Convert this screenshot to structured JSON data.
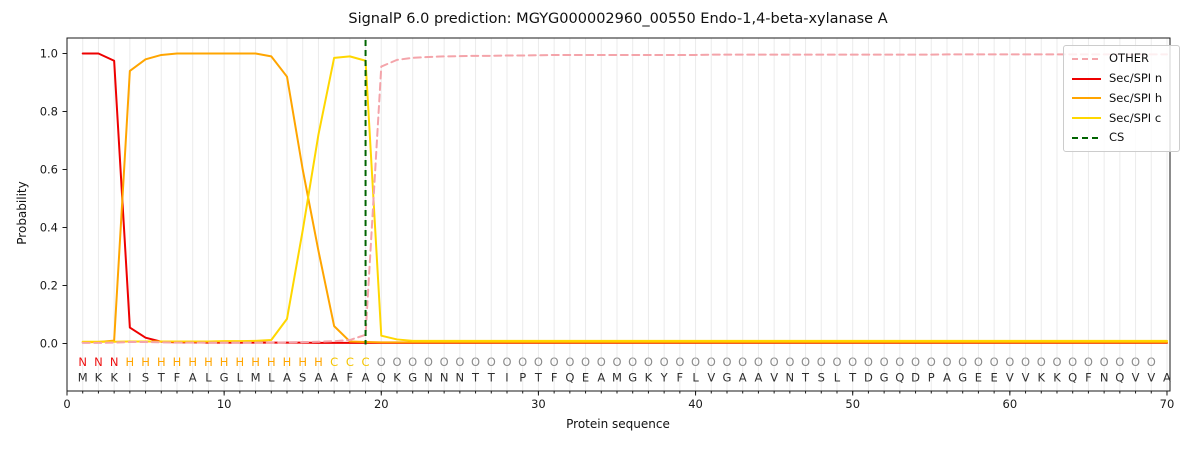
{
  "figure": {
    "title": "SignalP 6.0 prediction: MGYG000002960_00550 Endo-1,4-beta-xylanase A",
    "background": "#ffffff"
  },
  "axes": {
    "x_label": "Protein sequence",
    "y_label": "Probability",
    "x_ticks": [
      0,
      10,
      20,
      30,
      40,
      50,
      60,
      70
    ],
    "y_ticks": [
      "0.0",
      "0.2",
      "0.4",
      "0.6",
      "0.8",
      "1.0"
    ],
    "grid": "light vertical gridline at every residue position",
    "spine_color": "#1a1a1a",
    "grid_color": "#ebebeb"
  },
  "legend": {
    "position": "upper right",
    "items": [
      {
        "label": "OTHER",
        "color": "#f4a4aa",
        "dashed": true
      },
      {
        "label": "Sec/SPI n",
        "color": "#ee0000",
        "dashed": false
      },
      {
        "label": "Sec/SPI h",
        "color": "#ffa500",
        "dashed": false
      },
      {
        "label": "Sec/SPI c",
        "color": "#ffd700",
        "dashed": false
      },
      {
        "label": "CS",
        "color": "#006400",
        "dashed": true
      }
    ]
  },
  "sequence": {
    "residues": "MKKISTFALGLMLASAAFAQKGNNNTTIPTFQEAMGKYFLVGAAVNTSLTDGQDPAGEEVVKKQFNQVVA",
    "region_labels": "NNNHHHHHHHHHHHHHCCCOOOOOOOOOOOOOOOOOOOOOOOOOOOOOOOOOOOOOOOOOOOOOOOOOO",
    "region_colors": {
      "N": "#ee1111",
      "H": "#ffa500",
      "C": "#f5c400",
      "O": "#8c8c8c"
    },
    "residue_color": "#2f2f2f"
  },
  "chart_data": {
    "type": "line",
    "title": "SignalP 6.0 prediction: MGYG000002960_00550 Endo-1,4-beta-xylanase A",
    "xlabel": "Protein sequence",
    "ylabel": "Probability",
    "x_range": [
      1,
      70
    ],
    "xlim": [
      0,
      70.2
    ],
    "ylim": [
      -0.17,
      1.05
    ],
    "legend_position": "upper right",
    "grid": "vertical only",
    "cs_position": 19,
    "series": [
      {
        "name": "Sec/SPI n",
        "color": "#ee0000",
        "dashed": false,
        "values": [
          1.0,
          1.0,
          0.975,
          0.055,
          0.02,
          0.006,
          0.004,
          0.004,
          0.003,
          0.003,
          0.003,
          0.003,
          0.003,
          0.003,
          0.003,
          0.002,
          0.002,
          0.002,
          0.002,
          0.002,
          0.002,
          0.002,
          0.002,
          0.002,
          0.002,
          0.002,
          0.002,
          0.002,
          0.002,
          0.002,
          0.002,
          0.002,
          0.002,
          0.002,
          0.002,
          0.002,
          0.002,
          0.002,
          0.002,
          0.002,
          0.002,
          0.002,
          0.002,
          0.002,
          0.002,
          0.002,
          0.002,
          0.002,
          0.002,
          0.002,
          0.002,
          0.002,
          0.002,
          0.002,
          0.002,
          0.002,
          0.002,
          0.002,
          0.002,
          0.002,
          0.002,
          0.002,
          0.002,
          0.002,
          0.002,
          0.002,
          0.002,
          0.002,
          0.002,
          0.002
        ]
      },
      {
        "name": "Sec/SPI h",
        "color": "#ffa500",
        "dashed": false,
        "values": [
          0.004,
          0.005,
          0.01,
          0.94,
          0.98,
          0.995,
          1.0,
          1.0,
          1.0,
          1.0,
          1.0,
          1.0,
          0.99,
          0.92,
          0.6,
          0.32,
          0.06,
          0.007,
          0.005,
          0.004,
          0.004,
          0.004,
          0.004,
          0.004,
          0.004,
          0.004,
          0.004,
          0.004,
          0.004,
          0.004,
          0.004,
          0.004,
          0.004,
          0.004,
          0.004,
          0.004,
          0.004,
          0.004,
          0.004,
          0.004,
          0.004,
          0.004,
          0.004,
          0.004,
          0.004,
          0.004,
          0.004,
          0.004,
          0.004,
          0.004,
          0.004,
          0.004,
          0.004,
          0.004,
          0.004,
          0.004,
          0.004,
          0.004,
          0.004,
          0.004,
          0.004,
          0.004,
          0.004,
          0.004,
          0.004,
          0.004,
          0.004,
          0.004,
          0.004,
          0.004
        ]
      },
      {
        "name": "Sec/SPI c",
        "color": "#ffd700",
        "dashed": false,
        "values": [
          0.006,
          0.006,
          0.006,
          0.007,
          0.007,
          0.007,
          0.007,
          0.007,
          0.007,
          0.008,
          0.008,
          0.009,
          0.012,
          0.085,
          0.39,
          0.72,
          0.985,
          0.99,
          0.975,
          0.027,
          0.014,
          0.009,
          0.009,
          0.009,
          0.009,
          0.009,
          0.009,
          0.009,
          0.009,
          0.009,
          0.009,
          0.009,
          0.009,
          0.009,
          0.009,
          0.009,
          0.009,
          0.009,
          0.009,
          0.009,
          0.009,
          0.009,
          0.009,
          0.009,
          0.009,
          0.009,
          0.009,
          0.009,
          0.009,
          0.009,
          0.009,
          0.009,
          0.009,
          0.009,
          0.009,
          0.009,
          0.009,
          0.009,
          0.009,
          0.009,
          0.009,
          0.009,
          0.009,
          0.009,
          0.009,
          0.009,
          0.009,
          0.009,
          0.009,
          0.009
        ]
      },
      {
        "name": "OTHER",
        "color": "#f4a4aa",
        "dashed": true,
        "values": [
          0.002,
          0.002,
          0.003,
          0.005,
          0.005,
          0.004,
          0.003,
          0.003,
          0.003,
          0.003,
          0.003,
          0.003,
          0.003,
          0.004,
          0.005,
          0.006,
          0.008,
          0.012,
          0.03,
          0.955,
          0.978,
          0.985,
          0.988,
          0.99,
          0.991,
          0.992,
          0.992,
          0.993,
          0.993,
          0.994,
          0.995,
          0.995,
          0.995,
          0.995,
          0.995,
          0.995,
          0.995,
          0.995,
          0.995,
          0.995,
          0.996,
          0.996,
          0.996,
          0.996,
          0.996,
          0.996,
          0.996,
          0.996,
          0.996,
          0.996,
          0.996,
          0.996,
          0.996,
          0.996,
          0.996,
          0.997,
          0.997,
          0.997,
          0.997,
          0.997,
          0.997,
          0.997,
          0.997,
          0.997,
          0.997,
          0.997,
          0.997,
          0.997,
          0.997,
          0.997
        ]
      }
    ],
    "cs_line": {
      "name": "CS",
      "color": "#006400",
      "dashed": true,
      "x": 19
    }
  }
}
